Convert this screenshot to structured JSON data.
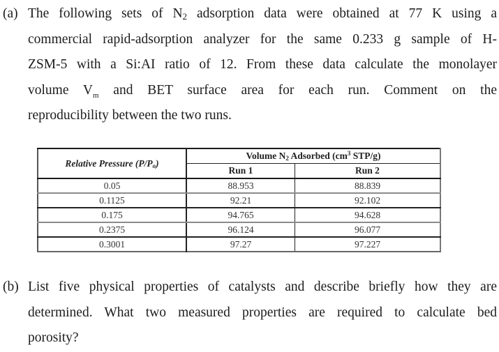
{
  "part_a": {
    "label": "(a)",
    "lines": [
      {
        "pre": "The following sets of N",
        "sub": "2",
        "post": " adsorption data were obtained at 77 K using a"
      },
      {
        "pre": "commercial rapid-adsorption analyzer for the same 0.233 g sample of H-",
        "sub": "",
        "post": ""
      },
      {
        "pre": "ZSM-5 with a Si:AI ratio of 12. From these data calculate the monolayer",
        "sub": "",
        "post": ""
      },
      {
        "pre": "volume V",
        "sub": "m",
        "post": " and BET surface area for each run. Comment on the"
      },
      {
        "pre": "reproducibility between the two runs.",
        "sub": "",
        "post": ""
      }
    ]
  },
  "table": {
    "header_relative_pressure": "Relative Pressure (P/P",
    "header_relative_pressure_sub": "o",
    "header_relative_pressure_end": ")",
    "header_volume_pre": "Volume N",
    "header_volume_sub": "2",
    "header_volume_mid": " Adsorbed (cm",
    "header_volume_sup": "3",
    "header_volume_post": " STP/g)",
    "run1_label": "Run 1",
    "run2_label": "Run 2",
    "rows": [
      {
        "p": "0.05",
        "run1": "88.953",
        "run2": "88.839"
      },
      {
        "p": "0.1125",
        "run1": "92.21",
        "run2": "92.102"
      },
      {
        "p": "0.175",
        "run1": "94.765",
        "run2": "94.628"
      },
      {
        "p": "0.2375",
        "run1": "96.124",
        "run2": "96.077"
      },
      {
        "p": "0.3001",
        "run1": "97.27",
        "run2": "97.227"
      }
    ]
  },
  "part_b": {
    "label": "(b)",
    "lines": [
      "List five physical properties of catalysts and describe briefly how they are",
      "determined. What two measured properties are required to calculate bed",
      "porosity?"
    ]
  }
}
